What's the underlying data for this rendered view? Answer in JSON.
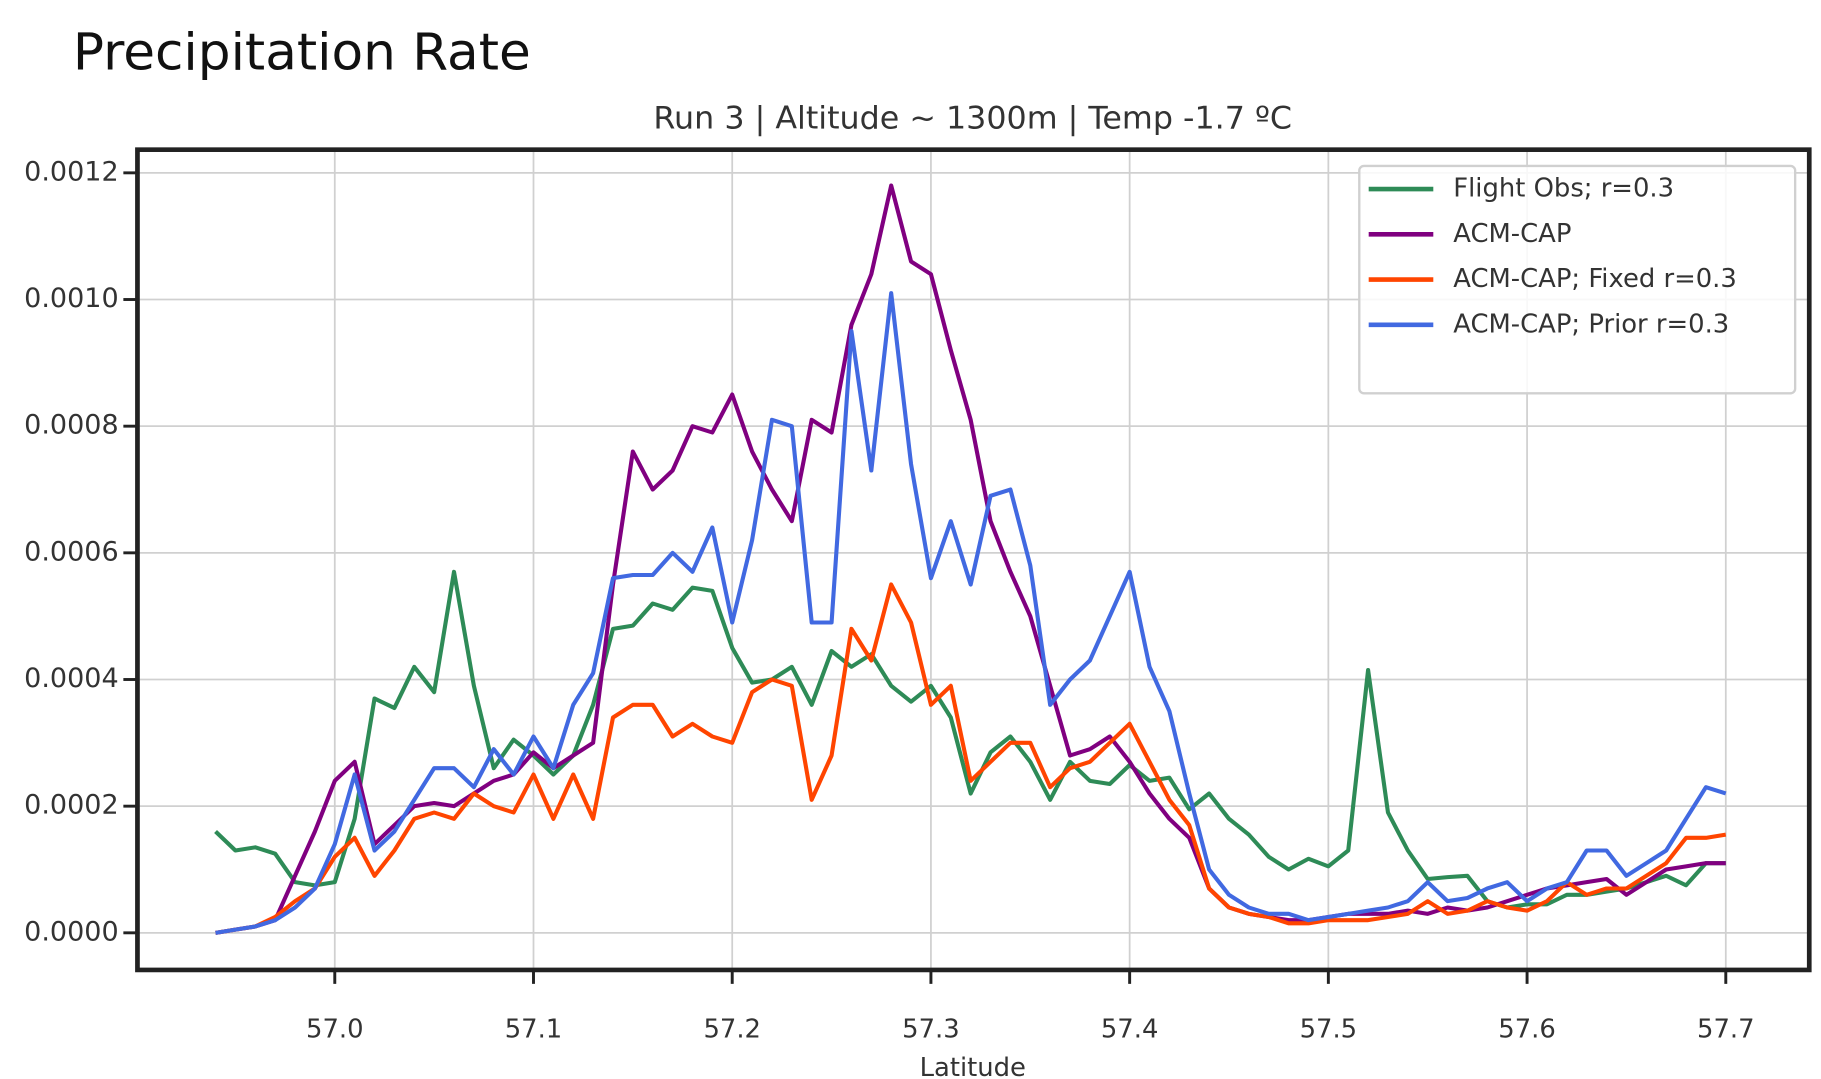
{
  "chart_data": {
    "type": "line",
    "title": "Precipitation Rate",
    "subtitle": "Run 3 | Altitude ~ 1300m | Temp -1.7 ºC",
    "x_label": "Latitude",
    "x": [
      56.94,
      56.95,
      56.96,
      56.97,
      56.98,
      56.99,
      57.0,
      57.01,
      57.02,
      57.03,
      57.04,
      57.05,
      57.06,
      57.07,
      57.08,
      57.09,
      57.1,
      57.11,
      57.12,
      57.13,
      57.14,
      57.15,
      57.16,
      57.17,
      57.18,
      57.19,
      57.2,
      57.21,
      57.22,
      57.23,
      57.24,
      57.25,
      57.26,
      57.27,
      57.28,
      57.29,
      57.3,
      57.31,
      57.32,
      57.33,
      57.34,
      57.35,
      57.36,
      57.37,
      57.38,
      57.39,
      57.4,
      57.41,
      57.42,
      57.43,
      57.44,
      57.45,
      57.46,
      57.47,
      57.48,
      57.49,
      57.5,
      57.51,
      57.52,
      57.53,
      57.54,
      57.55,
      57.56,
      57.57,
      57.58,
      57.59,
      57.6,
      57.61,
      57.62,
      57.63,
      57.64,
      57.65,
      57.66,
      57.67,
      57.68,
      57.69,
      57.7
    ],
    "series": [
      {
        "name": "Flight Obs; r=0.3",
        "color": "#2e8b57",
        "values": [
          0.00016,
          0.00013,
          0.000135,
          0.000125,
          8e-05,
          7.5e-05,
          8e-05,
          0.00018,
          0.00037,
          0.000355,
          0.00042,
          0.00038,
          0.00057,
          0.00039,
          0.00026,
          0.000305,
          0.00028,
          0.00025,
          0.00028,
          0.00036,
          0.00048,
          0.000485,
          0.00052,
          0.00051,
          0.000545,
          0.00054,
          0.00045,
          0.000395,
          0.0004,
          0.00042,
          0.00036,
          0.000445,
          0.00042,
          0.00044,
          0.00039,
          0.000365,
          0.00039,
          0.00034,
          0.00022,
          0.000285,
          0.00031,
          0.00027,
          0.00021,
          0.00027,
          0.00024,
          0.000235,
          0.000265,
          0.00024,
          0.000245,
          0.000195,
          0.00022,
          0.00018,
          0.000155,
          0.00012,
          0.0001,
          0.000117,
          0.000105,
          0.00013,
          0.000415,
          0.00019,
          0.00013,
          8.5e-05,
          8.8e-05,
          9e-05,
          5e-05,
          4e-05,
          4.5e-05,
          4.5e-05,
          6e-05,
          6e-05,
          6.5e-05,
          7e-05,
          8e-05,
          9e-05,
          7.5e-05,
          0.00011,
          0.00011
        ]
      },
      {
        "name": "ACM-CAP",
        "color": "#800080",
        "values": [
          0,
          5e-06,
          1e-05,
          2e-05,
          9e-05,
          0.00016,
          0.00024,
          0.00027,
          0.00014,
          0.00017,
          0.0002,
          0.000205,
          0.0002,
          0.00022,
          0.00024,
          0.00025,
          0.000285,
          0.00026,
          0.00028,
          0.0003,
          0.00055,
          0.00076,
          0.0007,
          0.00073,
          0.0008,
          0.00079,
          0.00085,
          0.00076,
          0.0007,
          0.00065,
          0.00081,
          0.00079,
          0.00096,
          0.00104,
          0.00118,
          0.00106,
          0.00104,
          0.00092,
          0.00081,
          0.00065,
          0.00057,
          0.0005,
          0.00039,
          0.00028,
          0.00029,
          0.00031,
          0.00027,
          0.00022,
          0.00018,
          0.00015,
          7e-05,
          4e-05,
          3e-05,
          2.5e-05,
          2e-05,
          2e-05,
          2.5e-05,
          3e-05,
          3e-05,
          3e-05,
          3.5e-05,
          3e-05,
          4e-05,
          3.5e-05,
          4e-05,
          5e-05,
          6e-05,
          7e-05,
          7.5e-05,
          8e-05,
          8.5e-05,
          6e-05,
          8e-05,
          0.0001,
          0.000105,
          0.00011,
          0.00011
        ]
      },
      {
        "name": "ACM-CAP; Fixed r=0.3",
        "color": "#ff4500",
        "values": [
          0,
          5e-06,
          1e-05,
          2.5e-05,
          5e-05,
          7e-05,
          0.00012,
          0.00015,
          9e-05,
          0.00013,
          0.00018,
          0.00019,
          0.00018,
          0.00022,
          0.0002,
          0.00019,
          0.00025,
          0.00018,
          0.00025,
          0.00018,
          0.00034,
          0.00036,
          0.00036,
          0.00031,
          0.00033,
          0.00031,
          0.0003,
          0.00038,
          0.0004,
          0.00039,
          0.00021,
          0.00028,
          0.00048,
          0.00043,
          0.00055,
          0.00049,
          0.00036,
          0.00039,
          0.00024,
          0.00027,
          0.0003,
          0.0003,
          0.00023,
          0.00026,
          0.00027,
          0.0003,
          0.00033,
          0.00027,
          0.00021,
          0.00017,
          7e-05,
          4e-05,
          3e-05,
          2.5e-05,
          1.5e-05,
          1.5e-05,
          2e-05,
          2e-05,
          2e-05,
          2.5e-05,
          3e-05,
          5e-05,
          3e-05,
          3.5e-05,
          5e-05,
          4e-05,
          3.5e-05,
          5e-05,
          8e-05,
          6e-05,
          7e-05,
          7e-05,
          9e-05,
          0.00011,
          0.00015,
          0.00015,
          0.000155
        ]
      },
      {
        "name": "ACM-CAP; Prior r=0.3",
        "color": "#4169e1",
        "values": [
          0,
          5e-06,
          1e-05,
          2e-05,
          4e-05,
          7e-05,
          0.00014,
          0.00025,
          0.00013,
          0.00016,
          0.00021,
          0.00026,
          0.00026,
          0.00023,
          0.00029,
          0.00025,
          0.00031,
          0.00026,
          0.00036,
          0.00041,
          0.00056,
          0.000565,
          0.000565,
          0.0006,
          0.00057,
          0.00064,
          0.00049,
          0.00062,
          0.00081,
          0.0008,
          0.00049,
          0.00049,
          0.00095,
          0.00073,
          0.00101,
          0.00074,
          0.00056,
          0.00065,
          0.00055,
          0.00069,
          0.0007,
          0.00058,
          0.00036,
          0.0004,
          0.00043,
          0.0005,
          0.00057,
          0.00042,
          0.00035,
          0.00022,
          0.0001,
          6e-05,
          4e-05,
          3e-05,
          3e-05,
          2e-05,
          2.5e-05,
          3e-05,
          3.5e-05,
          4e-05,
          5e-05,
          8e-05,
          5e-05,
          5.5e-05,
          7e-05,
          8e-05,
          5e-05,
          7e-05,
          8e-05,
          0.00013,
          0.00013,
          9e-05,
          0.00011,
          0.00013,
          0.00018,
          0.00023,
          0.00022
        ]
      }
    ],
    "xlim": [
      56.9007,
      57.742
    ],
    "ylim": [
      -5.86e-05,
      0.0012366
    ],
    "xticks": [
      {
        "value": 57.0,
        "label": "57.0"
      },
      57.1,
      57.2,
      57.3,
      57.4,
      57.5,
      57.6,
      57.7
    ],
    "yticks": [
      {
        "value": 0,
        "label": "0.0000"
      },
      0.0002,
      0.0004,
      0.0006,
      0.0008,
      {
        "value": 0.001,
        "label": "0.0010"
      },
      0.0012
    ],
    "grid": true,
    "legend": "upper right"
  }
}
